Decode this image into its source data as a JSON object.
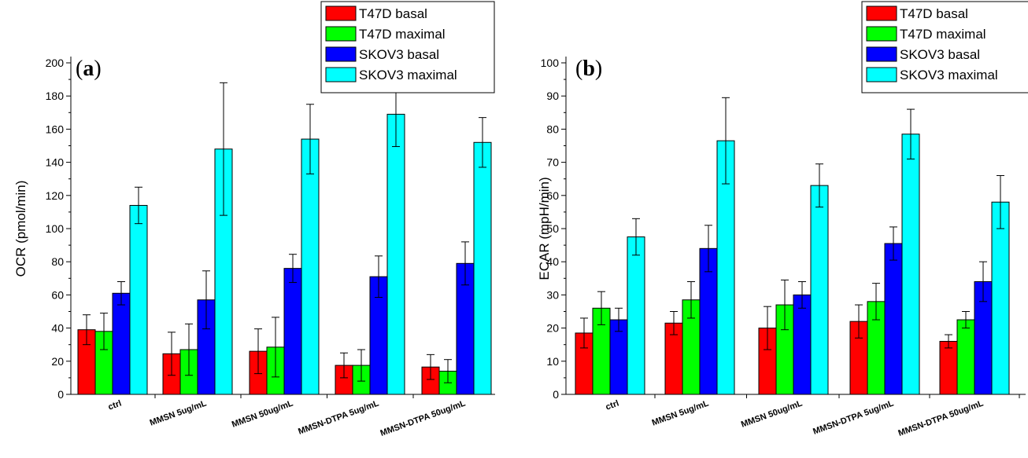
{
  "chart_data": [
    {
      "type": "bar",
      "panel": "(a)",
      "panel_letter": "a",
      "ylabel": "OCR (pmol/min)",
      "xlabel": "",
      "ylim": [
        0,
        210
      ],
      "yticks": [
        0,
        20,
        40,
        60,
        80,
        100,
        120,
        140,
        160,
        180,
        200
      ],
      "categories": [
        "ctrl",
        "MMSN 5ug/mL",
        "MMSN 50ug/mL",
        "MMSN-DTPA 5ug/mL",
        "MMSN-DTPA 50ug/mL"
      ],
      "legend_position": "top-right",
      "grid": false,
      "series": [
        {
          "name": "T47D basal",
          "color": "#ff0000",
          "values": [
            39,
            24.5,
            26,
            17.5,
            16.5
          ],
          "errors": [
            9,
            13,
            13.5,
            7.5,
            7.5
          ]
        },
        {
          "name": "T47D maximal",
          "color": "#00ff00",
          "values": [
            38,
            27,
            28.5,
            17.5,
            14
          ],
          "errors": [
            11,
            15.5,
            18,
            9.5,
            7
          ]
        },
        {
          "name": "SKOV3 basal",
          "color": "#0000ff",
          "values": [
            61,
            57,
            76,
            71,
            79
          ],
          "errors": [
            7,
            17.5,
            8.5,
            12.5,
            13
          ]
        },
        {
          "name": "SKOV3 maximal",
          "color": "#00ffff",
          "values": [
            114,
            148,
            154,
            169,
            152
          ],
          "errors": [
            11,
            40,
            21,
            19.5,
            15
          ]
        }
      ]
    },
    {
      "type": "bar",
      "panel": "(b)",
      "panel_letter": "b",
      "ylabel": "ECAR (mpH/min)",
      "xlabel": "",
      "ylim": [
        0,
        100
      ],
      "yticks": [
        0,
        10,
        20,
        30,
        40,
        50,
        60,
        70,
        80,
        90,
        100
      ],
      "categories": [
        "ctrl",
        "MMSN 5ug/mL",
        "MMSN 50ug/mL",
        "MMSN-DTPA 5ug/mL",
        "MMSN-DTPA 50ug/mL"
      ],
      "legend_position": "top-right",
      "grid": false,
      "series": [
        {
          "name": "T47D basal",
          "color": "#ff0000",
          "values": [
            18.5,
            21.5,
            20,
            22,
            16
          ],
          "errors": [
            4.5,
            3.5,
            6.5,
            5,
            2
          ]
        },
        {
          "name": "T47D maximal",
          "color": "#00ff00",
          "values": [
            26,
            28.5,
            27,
            28,
            22.5
          ],
          "errors": [
            5,
            5.5,
            7.5,
            5.5,
            2.5
          ]
        },
        {
          "name": "SKOV3 basal",
          "color": "#0000ff",
          "values": [
            22.5,
            44,
            30,
            45.5,
            34
          ],
          "errors": [
            3.5,
            7,
            4,
            5,
            6
          ]
        },
        {
          "name": "SKOV3 maximal",
          "color": "#00ffff",
          "values": [
            47.5,
            76.5,
            63,
            78.5,
            58
          ],
          "errors": [
            5.5,
            13,
            6.5,
            7.5,
            8
          ]
        }
      ]
    }
  ]
}
